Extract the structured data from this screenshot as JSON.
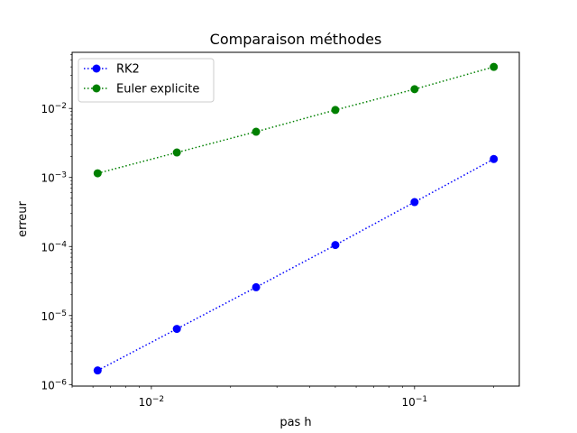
{
  "chart_data": {
    "type": "line",
    "title": "Comparaison méthodes",
    "xlabel": "pas h",
    "ylabel": "erreur",
    "xscale": "log",
    "yscale": "log",
    "xlim": [
      0.005,
      0.25
    ],
    "ylim": [
      9.5e-07,
      0.065
    ],
    "grid": false,
    "legend_position": "upper-left",
    "x_major_ticks": [
      {
        "value": 0.01,
        "base": "10",
        "exp": "−2"
      },
      {
        "value": 0.1,
        "base": "10",
        "exp": "−1"
      }
    ],
    "y_major_ticks": [
      {
        "value": 1e-06,
        "base": "10",
        "exp": "−6"
      },
      {
        "value": 1e-05,
        "base": "10",
        "exp": "−5"
      },
      {
        "value": 0.0001,
        "base": "10",
        "exp": "−4"
      },
      {
        "value": 0.001,
        "base": "10",
        "exp": "−3"
      },
      {
        "value": 0.01,
        "base": "10",
        "exp": "−2"
      }
    ],
    "x": [
      0.00625,
      0.0125,
      0.025,
      0.05,
      0.1,
      0.2
    ],
    "series": [
      {
        "name": "RK2",
        "color": "#0000ff",
        "line_style": "dotted",
        "marker": "circle",
        "values": [
          1.6e-06,
          6.4e-06,
          2.57e-05,
          0.000105,
          0.00044,
          0.00185
        ]
      },
      {
        "name": "Euler explicite",
        "color": "#008000",
        "line_style": "dotted",
        "marker": "circle",
        "values": [
          0.00115,
          0.0023,
          0.0046,
          0.0095,
          0.019,
          0.04
        ]
      }
    ]
  }
}
